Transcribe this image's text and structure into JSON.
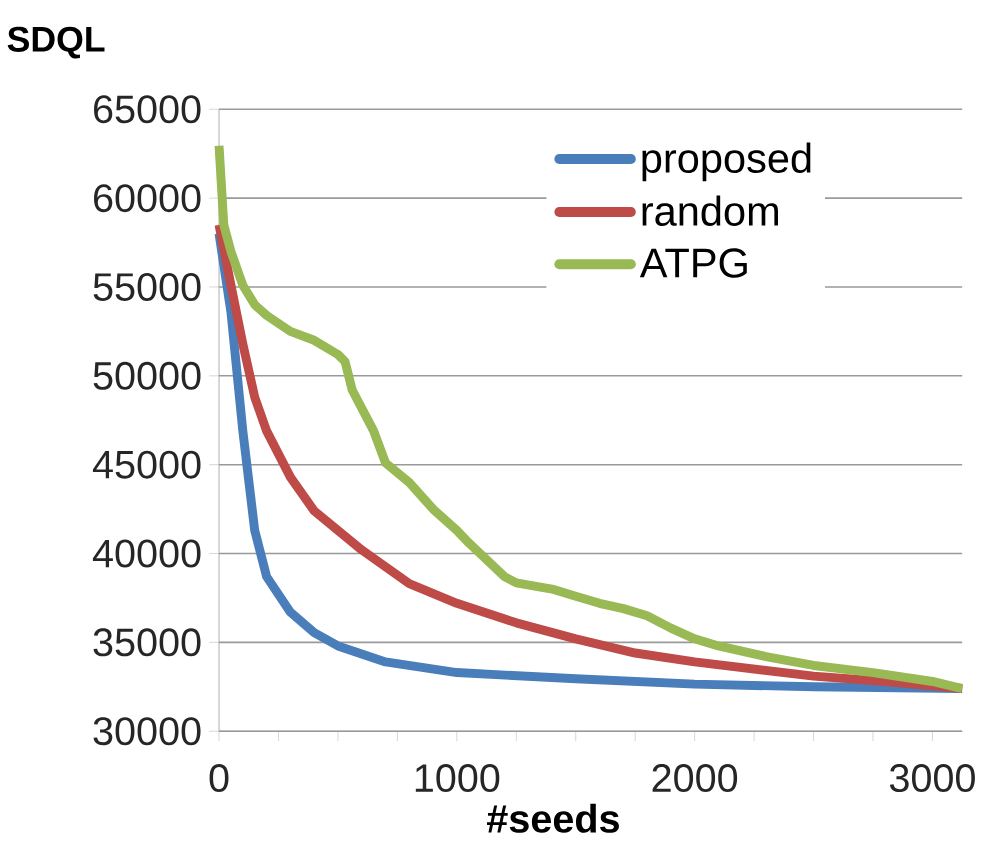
{
  "chart_data": {
    "type": "line",
    "xlabel": "#seeds",
    "ylabel": "SDQL",
    "xlim": [
      0,
      3125
    ],
    "ylim": [
      30000,
      65000
    ],
    "xticks": [
      0,
      {
        "value": 250,
        "label": null
      },
      {
        "value": 500,
        "label": null
      },
      {
        "value": 750,
        "label": null
      },
      1000,
      {
        "value": 1250,
        "label": null
      },
      {
        "value": 1500,
        "label": null
      },
      {
        "value": 1750,
        "label": null
      },
      2000,
      {
        "value": 2250,
        "label": null
      },
      {
        "value": 2500,
        "label": null
      },
      {
        "value": 2750,
        "label": null
      },
      3000
    ],
    "yticks": [
      30000,
      35000,
      40000,
      45000,
      50000,
      55000,
      60000,
      65000
    ],
    "grid": "y",
    "legend": "top right",
    "marker": "none",
    "line_style": "solid",
    "series": [
      {
        "name": "proposed",
        "color": "#4a7ebb",
        "x": [
          0,
          50,
          100,
          150,
          200,
          300,
          400,
          500,
          700,
          1000,
          1500,
          2000,
          2500,
          3125
        ],
        "values": [
          58000,
          53600,
          46900,
          41300,
          38700,
          36700,
          35550,
          34800,
          33900,
          33300,
          32950,
          32650,
          32500,
          32400
        ]
      },
      {
        "name": "random",
        "color": "#be4b48",
        "x": [
          0,
          50,
          100,
          150,
          200,
          300,
          400,
          500,
          600,
          800,
          1000,
          1250,
          1500,
          1750,
          2000,
          2500,
          2800,
          3125
        ],
        "values": [
          58500,
          55100,
          51800,
          48800,
          46900,
          44300,
          42400,
          41300,
          40200,
          38300,
          37200,
          36100,
          35200,
          34400,
          33900,
          33100,
          32800,
          32400
        ]
      },
      {
        "name": "ATPG",
        "color": "#98b954",
        "x": [
          0,
          20,
          50,
          100,
          150,
          200,
          300,
          400,
          500,
          530,
          560,
          650,
          700,
          800,
          900,
          1000,
          1050,
          1200,
          1250,
          1400,
          1500,
          1600,
          1700,
          1800,
          1900,
          2000,
          2100,
          2300,
          2500,
          2750,
          3000,
          3125
        ],
        "values": [
          62950,
          58500,
          57000,
          55100,
          54000,
          53400,
          52500,
          52000,
          51200,
          50800,
          49200,
          46900,
          45100,
          44000,
          42500,
          41300,
          40600,
          38700,
          38350,
          38000,
          37600,
          37200,
          36900,
          36500,
          35800,
          35200,
          34800,
          34200,
          33700,
          33300,
          32800,
          32400
        ]
      }
    ]
  }
}
